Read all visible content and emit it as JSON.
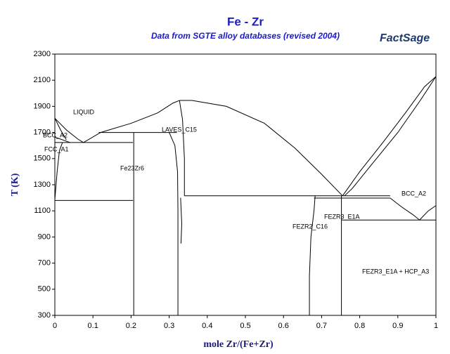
{
  "chart_data": {
    "type": "line",
    "title": "Fe - Zr",
    "subtitle": "Data from SGTE alloy databases (revised 2004)",
    "logo": "FactSage",
    "xlabel": "mole Zr/(Fe+Zr)",
    "ylabel": "T (K)",
    "color": "#000000",
    "xlim": [
      0,
      1
    ],
    "ylim": [
      300,
      2300
    ],
    "xticks": [
      0,
      0.1,
      0.2,
      0.3,
      0.4,
      0.5,
      0.6,
      0.7,
      0.8,
      0.9,
      1
    ],
    "yticks": [
      300,
      500,
      700,
      900,
      1100,
      1300,
      1500,
      1700,
      1900,
      2100,
      2300
    ],
    "annotations": [
      "LIQUID",
      "BCC_A2",
      "FCC_A1",
      "LAVES_C15",
      "Fe23Zr6",
      "FEZR2_C16",
      "FEZR3_E1A",
      "BCC_A2",
      "FEZR3_E1A + HCP_A3"
    ],
    "lines": [
      {
        "x": [
          0,
          0.03,
          0.06,
          0.075
        ],
        "values": [
          1809,
          1720,
          1650,
          1623
        ]
      },
      {
        "x": [
          0.075,
          0.12,
          0.2,
          0.27,
          0.31,
          0.327
        ],
        "values": [
          1623,
          1700,
          1770,
          1850,
          1925,
          1945
        ]
      },
      {
        "x": [
          0.327,
          0.36,
          0.45,
          0.55,
          0.63,
          0.7,
          0.755
        ],
        "values": [
          1945,
          1945,
          1900,
          1770,
          1580,
          1380,
          1215
        ]
      },
      {
        "x": [
          0.755,
          0.8,
          0.86,
          0.92,
          0.97,
          1
        ],
        "values": [
          1215,
          1400,
          1620,
          1850,
          2050,
          2128
        ]
      },
      {
        "x": [
          0.76,
          0.78,
          0.83,
          0.9,
          0.96,
          1
        ],
        "values": [
          1215,
          1270,
          1450,
          1700,
          1950,
          2128
        ]
      },
      {
        "x": [
          0,
          0.015,
          0.03
        ],
        "values": [
          1809,
          1720,
          1645
        ]
      },
      {
        "x": [
          0,
          0.04
        ],
        "values": [
          1665,
          1623
        ]
      },
      {
        "x": [
          0,
          0.006,
          0.012,
          0.02
        ],
        "values": [
          1185,
          1400,
          1560,
          1623
        ]
      },
      {
        "x": [
          0,
          0.205
        ],
        "values": [
          1623,
          1623
        ]
      },
      {
        "x": [
          0.115,
          0.32
        ],
        "values": [
          1700,
          1700
        ]
      },
      {
        "x": [
          0,
          0.205
        ],
        "values": [
          1180,
          1180
        ]
      },
      {
        "x": [
          0.207,
          0.207
        ],
        "values": [
          300,
          1700
        ]
      },
      {
        "x": [
          0.3,
          0.315,
          0.322,
          0.323,
          0.323
        ],
        "values": [
          1700,
          1600,
          1400,
          1100,
          300
        ]
      },
      {
        "x": [
          0.327,
          0.335,
          0.34,
          0.34
        ],
        "values": [
          1945,
          1800,
          1500,
          1215
        ]
      },
      {
        "x": [
          0.33,
          0.333,
          0.331
        ],
        "values": [
          1200,
          1000,
          850
        ]
      },
      {
        "x": [
          0.34,
          0.755
        ],
        "values": [
          1215,
          1215
        ]
      },
      {
        "x": [
          0.755,
          0.88
        ],
        "values": [
          1215,
          1215
        ]
      },
      {
        "x": [
          0.68,
          0.88
        ],
        "values": [
          1198,
          1198
        ]
      },
      {
        "x": [
          0.668,
          0.668,
          0.672,
          0.68,
          0.683
        ],
        "values": [
          300,
          600,
          900,
          1100,
          1215
        ]
      },
      {
        "x": [
          0.752,
          0.752
        ],
        "values": [
          300,
          1215
        ]
      },
      {
        "x": [
          0.753,
          1
        ],
        "values": [
          1030,
          1030
        ]
      },
      {
        "x": [
          0.88,
          0.91,
          0.94,
          0.957
        ],
        "values": [
          1198,
          1130,
          1070,
          1030
        ]
      },
      {
        "x": [
          0.957,
          0.98,
          1
        ],
        "values": [
          1030,
          1100,
          1140
        ]
      }
    ]
  }
}
